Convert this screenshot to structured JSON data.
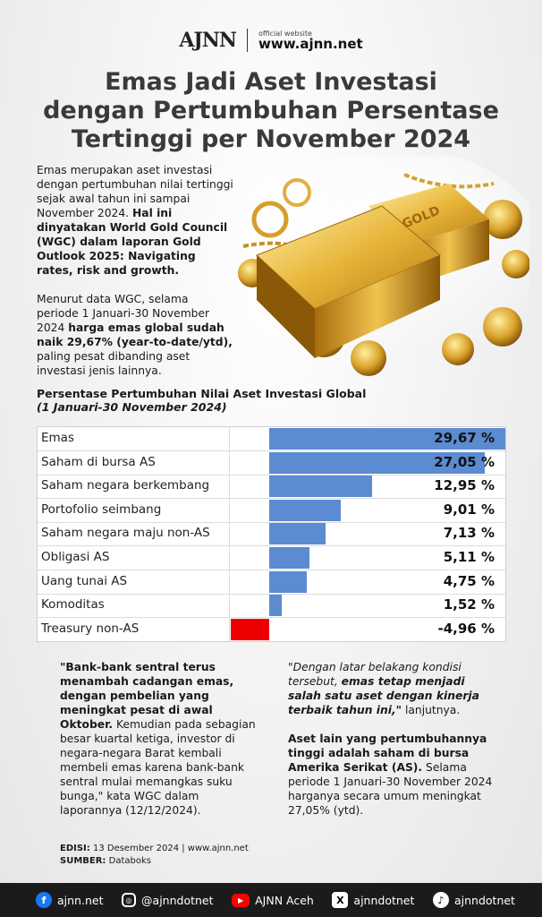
{
  "header": {
    "logo_text": "AJNN",
    "official_label": "official website",
    "url": "www.ajnn.net"
  },
  "title": {
    "line1": "Emas Jadi Aset Investasi",
    "line2": "dengan Pertumbuhan Persentase",
    "line3": "Tertinggi per November 2024"
  },
  "intro": {
    "p1_plain": "Emas merupakan aset investasi dengan pertumbuhan nilai tertinggi sejak awal tahun ini sampai November 2024. ",
    "p1_bold": "Hal ini dinyatakan World Gold Council (WGC) dalam laporan Gold Outlook 2025: Navigating rates, risk and growth.",
    "p2_plain1": "Menurut data WGC, selama periode 1 Januari-30 November 2024 ",
    "p2_bold": "harga emas global sudah naik 29,67% (year-to-date/ytd),",
    "p2_plain2": " paling pesat dibanding aset investasi jenis lainnya."
  },
  "chart_data": {
    "type": "bar",
    "title": "Persentase Pertumbuhan Nilai Aset Investasi Global",
    "subtitle": "(1 Januari-30 November 2024)",
    "categories": [
      "Emas",
      "Saham di bursa AS",
      "Saham negara berkembang",
      "Portofolio seimbang",
      "Saham negara maju non-AS",
      "Obligasi AS",
      "Uang tunai AS",
      "Komoditas",
      "Treasury non-AS"
    ],
    "values": [
      29.67,
      27.05,
      12.95,
      9.01,
      7.13,
      5.11,
      4.75,
      1.52,
      -4.96
    ],
    "value_labels": [
      "29,67 %",
      "27,05 %",
      "12,95 %",
      "9,01 %",
      "7,13 %",
      "5,11 %",
      "4,75 %",
      "1,52 %",
      "-4,96 %"
    ],
    "xlim": [
      -5.5,
      29.67
    ],
    "positive_color": "#5b8bd0",
    "negative_color": "#ee0000"
  },
  "left_col": {
    "quote_bold": "\"Bank-bank sentral terus menambah cadangan emas, dengan pembelian yang meningkat pesat di awal Oktober.",
    "quote_plain": " Kemudian pada sebagian besar kuartal ketiga, investor di negara-negara Barat kembali membeli emas karena bank-bank sentral mulai memangkas suku bunga,\" kata WGC dalam laporannya (12/12/2024)."
  },
  "right_col": {
    "q_italic1": "\"Dengan latar belakang kondisi tersebut, ",
    "q_bolditalic": "emas tetap menjadi salah satu aset dengan kinerja terbaik tahun ini,\"",
    "q_plain": " lanjutnya.",
    "p2_bold": "Aset lain yang pertumbuhannya tinggi adalah saham di bursa Amerika Serikat (AS).",
    "p2_plain": " Selama periode 1 Januari-30 November 2024 harganya secara umum meningkat 27,05% (ytd)."
  },
  "edisi": {
    "edisi_label": "EDISI:",
    "edisi_value": " 13 Desember 2024 | www.ajnn.net",
    "sumber_label": "SUMBER:",
    "sumber_value": " Databoks"
  },
  "footer": {
    "items": [
      {
        "icon": "facebook-icon",
        "label": "ajnn.net",
        "color": "#1877f2"
      },
      {
        "icon": "instagram-icon",
        "label": "@ajnndotnet",
        "color": "#1b1b1b"
      },
      {
        "icon": "youtube-icon",
        "label": "AJNN Aceh",
        "color": "#ff0000"
      },
      {
        "icon": "x-icon",
        "label": "ajnndotnet",
        "color": "#ffffff"
      },
      {
        "icon": "tiktok-icon",
        "label": "ajnndotnet",
        "color": "#ffffff"
      }
    ]
  }
}
